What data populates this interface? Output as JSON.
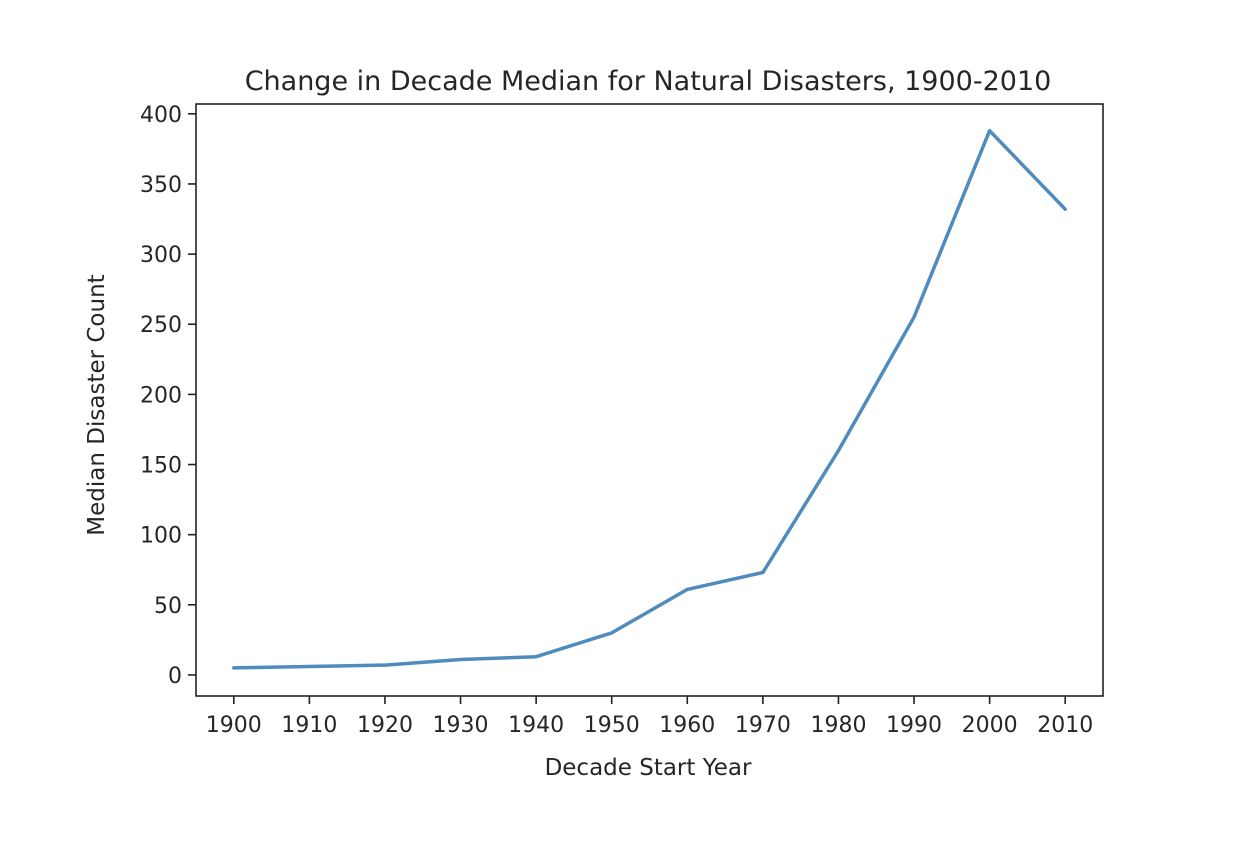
{
  "chart_data": {
    "type": "line",
    "title": "Change in Decade Median for Natural Disasters, 1900-2010",
    "xlabel": "Decade Start Year",
    "ylabel": "Median Disaster Count",
    "x": [
      1900,
      1910,
      1920,
      1930,
      1940,
      1950,
      1960,
      1970,
      1980,
      1990,
      2000,
      2010
    ],
    "series": [
      {
        "values": [
          5,
          6,
          7,
          11,
          13,
          30,
          61,
          73,
          160,
          255,
          388,
          332
        ]
      }
    ],
    "xticks": [
      "1900",
      "1910",
      "1920",
      "1930",
      "1940",
      "1950",
      "1960",
      "1970",
      "1980",
      "1990",
      "2000",
      "2010"
    ],
    "yticks": [
      "0",
      "50",
      "100",
      "150",
      "200",
      "250",
      "300",
      "350",
      "400"
    ],
    "xlim": [
      1895,
      2015
    ],
    "ylim": [
      -15,
      407
    ],
    "grid": false,
    "line_color": "#4f8bbd"
  }
}
